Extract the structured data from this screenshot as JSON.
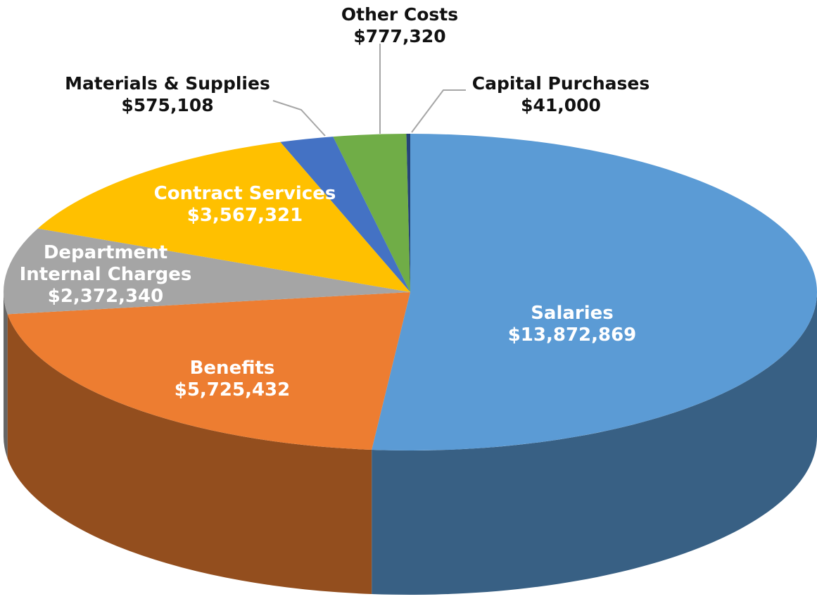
{
  "chart_data": {
    "type": "pie3d",
    "categories": [
      "Salaries",
      "Benefits",
      "Department Internal Charges",
      "Contract Services",
      "Materials & Supplies",
      "Other Costs",
      "Capital Purchases"
    ],
    "values": [
      13872869,
      5725432,
      2372340,
      3567321,
      575108,
      777320,
      41000
    ],
    "value_labels": [
      "$13,872,869",
      "$5,725,432",
      "$2,372,340",
      "$3,567,321",
      "$575,108",
      "$777,320",
      "$41,000"
    ],
    "colors": [
      "#5b9bd5",
      "#ed7d31",
      "#a5a5a5",
      "#ffc000",
      "#4472c4",
      "#70ad47",
      "#264478"
    ]
  }
}
